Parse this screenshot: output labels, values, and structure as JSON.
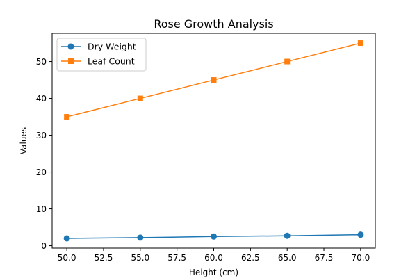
{
  "chart_data": {
    "type": "line",
    "title": "Rose Growth Analysis",
    "xlabel": "Height (cm)",
    "ylabel": "Values",
    "x": [
      50,
      55,
      60,
      65,
      70
    ],
    "xlim": [
      49,
      71
    ],
    "ylim": [
      -0.65,
      57.65
    ],
    "xticks": [
      50,
      52.5,
      55,
      57.5,
      60,
      62.5,
      65,
      67.5,
      70
    ],
    "xtick_labels": [
      "50.0",
      "52.5",
      "55.0",
      "57.5",
      "60.0",
      "62.5",
      "65.0",
      "67.5",
      "70.0"
    ],
    "yticks": [
      0,
      10,
      20,
      30,
      40,
      50
    ],
    "ytick_labels": [
      "0",
      "10",
      "20",
      "30",
      "40",
      "50"
    ],
    "grid": false,
    "legend_position": "top-left",
    "series": [
      {
        "name": "Dry Weight",
        "values": [
          2.0,
          2.2,
          2.5,
          2.7,
          3.0
        ],
        "color": "#1f77b4",
        "marker": "circle"
      },
      {
        "name": "Leaf Count",
        "values": [
          35,
          40,
          45,
          50,
          55
        ],
        "color": "#ff7f0e",
        "marker": "square"
      }
    ]
  }
}
